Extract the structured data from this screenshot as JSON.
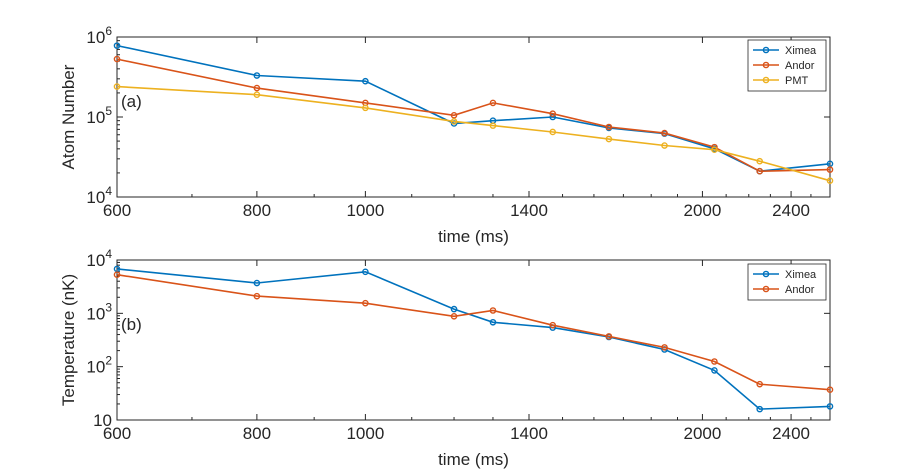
{
  "chart_data": [
    {
      "type": "line",
      "panel_label": "(a)",
      "xlabel": "time (ms)",
      "ylabel": "Atom Number",
      "xscale": "log",
      "yscale": "log",
      "xlim": [
        600,
        2600
      ],
      "ylim": [
        10000,
        1000000
      ],
      "xticks": [
        600,
        800,
        1000,
        1400,
        2000,
        2400
      ],
      "xtick_labels": [
        "600",
        "800",
        "1000",
        "1400",
        "2000",
        "2400"
      ],
      "yticks": [
        10000,
        100000,
        1000000
      ],
      "ytick_labels": [
        {
          "base": "10",
          "exp": "4"
        },
        {
          "base": "10",
          "exp": "5"
        },
        {
          "base": "10",
          "exp": "6"
        }
      ],
      "legend_position": "top-right",
      "series": [
        {
          "name": "Ximea",
          "color": "#0072BD",
          "x": [
            600,
            800,
            1000,
            1200,
            1300,
            1470,
            1650,
            1850,
            2050,
            2250,
            2600
          ],
          "y": [
            780000,
            330000,
            280000,
            83000,
            90000,
            100000,
            73000,
            62000,
            40000,
            21000,
            26000
          ]
        },
        {
          "name": "Andor",
          "color": "#D95319",
          "x": [
            600,
            800,
            1000,
            1200,
            1300,
            1470,
            1650,
            1850,
            2050,
            2250,
            2600
          ],
          "y": [
            530000,
            230000,
            150000,
            105000,
            150000,
            110000,
            75000,
            63000,
            42000,
            21000,
            22000
          ]
        },
        {
          "name": "PMT",
          "color": "#EDB120",
          "x": [
            600,
            800,
            1000,
            1200,
            1300,
            1470,
            1650,
            1850,
            2050,
            2250,
            2600
          ],
          "y": [
            240000,
            190000,
            130000,
            88000,
            78000,
            65000,
            53000,
            44000,
            39000,
            28000,
            16000
          ]
        }
      ]
    },
    {
      "type": "line",
      "panel_label": "(b)",
      "xlabel": "time (ms)",
      "ylabel": "Temperature (nK)",
      "xscale": "log",
      "yscale": "log",
      "xlim": [
        600,
        2600
      ],
      "ylim": [
        10,
        10000
      ],
      "xticks": [
        600,
        800,
        1000,
        1400,
        2000,
        2400
      ],
      "xtick_labels": [
        "600",
        "800",
        "1000",
        "1400",
        "2000",
        "2400"
      ],
      "yticks": [
        10,
        100,
        1000,
        10000
      ],
      "ytick_labels": [
        {
          "base": "10",
          "exp": ""
        },
        {
          "base": "10",
          "exp": "2"
        },
        {
          "base": "10",
          "exp": "3"
        },
        {
          "base": "10",
          "exp": "4"
        }
      ],
      "legend_position": "top-right",
      "series": [
        {
          "name": "Ximea",
          "color": "#0072BD",
          "x": [
            600,
            800,
            1000,
            1200,
            1300,
            1470,
            1650,
            1850,
            2050,
            2250,
            2600
          ],
          "y": [
            6800,
            3700,
            6000,
            1200,
            680,
            540,
            360,
            210,
            85,
            16,
            18
          ]
        },
        {
          "name": "Andor",
          "color": "#D95319",
          "x": [
            600,
            800,
            1000,
            1200,
            1300,
            1470,
            1650,
            1850,
            2050,
            2250,
            2600
          ],
          "y": [
            5300,
            2100,
            1550,
            880,
            1130,
            600,
            370,
            230,
            125,
            47,
            37
          ]
        }
      ]
    }
  ]
}
